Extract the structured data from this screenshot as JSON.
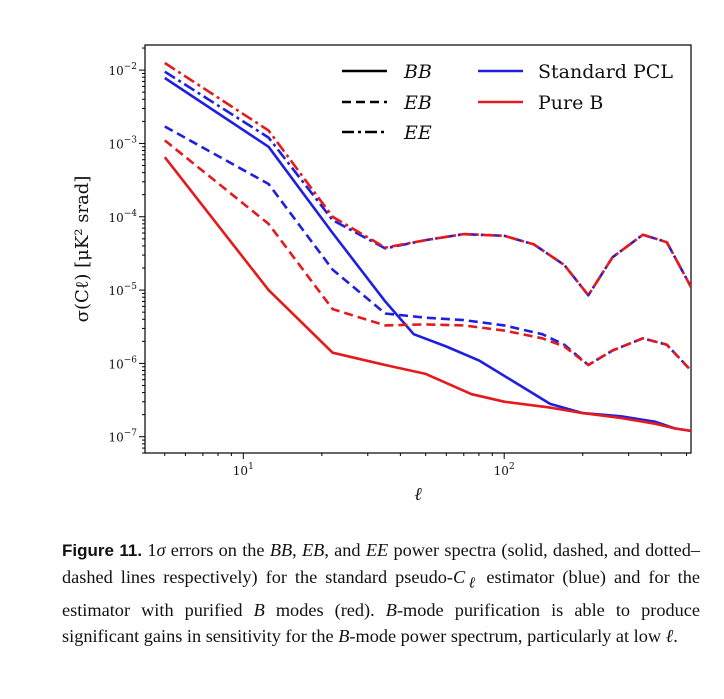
{
  "chart_data": {
    "type": "line",
    "xscale": "log",
    "yscale": "log",
    "xlim": [
      4.2,
      520
    ],
    "ylim": [
      6e-08,
      0.022
    ],
    "xlabel": "ℓ",
    "ylabel": "σ(Cℓ) [μK² srad]",
    "grid": false,
    "legend_position": "top-right",
    "x_ticks": [
      {
        "value": 10,
        "base": "10",
        "exp": "1"
      },
      {
        "value": 100,
        "base": "10",
        "exp": "2"
      }
    ],
    "y_ticks": [
      {
        "value": 0.01,
        "base": "10",
        "exp": "−2"
      },
      {
        "value": 0.001,
        "base": "10",
        "exp": "−3"
      },
      {
        "value": 0.0001,
        "base": "10",
        "exp": "−4"
      },
      {
        "value": 1e-05,
        "base": "10",
        "exp": "−5"
      },
      {
        "value": 1e-06,
        "base": "10",
        "exp": "−6"
      },
      {
        "value": 1e-07,
        "base": "10",
        "exp": "−7"
      }
    ],
    "legend": {
      "styles": [
        {
          "label": "BB",
          "dash": "solid"
        },
        {
          "label": "EB",
          "dash": "dashed"
        },
        {
          "label": "EE",
          "dash": "dashdot"
        }
      ],
      "methods": [
        {
          "label": "Standard PCL",
          "color": "#1f1fe0"
        },
        {
          "label": "Pure B",
          "color": "#e41a1c"
        }
      ]
    },
    "series": [
      {
        "spectrum": "EE",
        "method": "Standard PCL",
        "color": "#1f1fe0",
        "dash": "dashdot",
        "x": [
          5,
          12.5,
          22,
          35,
          50,
          70,
          100,
          130,
          170,
          210,
          260,
          340,
          420,
          520
        ],
        "y": [
          0.0095,
          0.0012,
          9e-05,
          3.7e-05,
          4.8e-05,
          5.8e-05,
          5.5e-05,
          4.2e-05,
          2.2e-05,
          8.5e-06,
          2.8e-05,
          5.7e-05,
          4.5e-05,
          1.1e-05
        ]
      },
      {
        "spectrum": "EE",
        "method": "Pure B",
        "color": "#e41a1c",
        "dash": "dashdot",
        "x": [
          5,
          12.5,
          22,
          35,
          50,
          70,
          100,
          130,
          170,
          210,
          260,
          340,
          420,
          520
        ],
        "y": [
          0.0125,
          0.0015,
          0.0001,
          3.8e-05,
          4.8e-05,
          5.8e-05,
          5.5e-05,
          4.2e-05,
          2.2e-05,
          8.5e-06,
          2.8e-05,
          5.7e-05,
          4.5e-05,
          1.1e-05
        ]
      },
      {
        "spectrum": "BB",
        "method": "Standard PCL",
        "color": "#1f1fe0",
        "dash": "solid",
        "x": [
          5,
          12.5,
          22,
          35,
          45,
          60,
          80,
          110,
          150,
          200,
          280,
          380,
          450,
          520
        ],
        "y": [
          0.0078,
          0.0009,
          6e-05,
          7e-06,
          2.5e-06,
          1.7e-06,
          1.1e-06,
          5.5e-07,
          2.8e-07,
          2.1e-07,
          1.9e-07,
          1.6e-07,
          1.3e-07,
          1.2e-07
        ]
      },
      {
        "spectrum": "BB",
        "method": "Pure B",
        "color": "#e41a1c",
        "dash": "solid",
        "x": [
          5,
          12.5,
          22,
          35,
          50,
          75,
          100,
          150,
          200,
          280,
          380,
          450,
          520
        ],
        "y": [
          0.00065,
          1e-05,
          1.4e-06,
          9.5e-07,
          7.2e-07,
          3.8e-07,
          3e-07,
          2.5e-07,
          2.1e-07,
          1.8e-07,
          1.5e-07,
          1.3e-07,
          1.2e-07
        ]
      },
      {
        "spectrum": "EB",
        "method": "Standard PCL",
        "color": "#1f1fe0",
        "dash": "dashed",
        "x": [
          5,
          12.5,
          22,
          35,
          50,
          70,
          100,
          140,
          170,
          210,
          260,
          340,
          420,
          520
        ],
        "y": [
          0.0017,
          0.00028,
          1.9e-05,
          4.8e-06,
          4.2e-06,
          3.9e-06,
          3.3e-06,
          2.5e-06,
          1.8e-06,
          9.5e-07,
          1.5e-06,
          2.2e-06,
          1.8e-06,
          8e-07
        ]
      },
      {
        "spectrum": "EB",
        "method": "Pure B",
        "color": "#e41a1c",
        "dash": "dashed",
        "x": [
          5,
          12.5,
          22,
          35,
          50,
          70,
          100,
          140,
          170,
          210,
          260,
          340,
          420,
          520
        ],
        "y": [
          0.0011,
          8e-05,
          5.5e-06,
          3.3e-06,
          3.4e-06,
          3.3e-06,
          2.8e-06,
          2.2e-06,
          1.7e-06,
          9.5e-07,
          1.5e-06,
          2.2e-06,
          1.8e-06,
          8e-07
        ]
      }
    ]
  },
  "caption": {
    "label": "Figure 11.",
    "p1": " 1",
    "sigma": "σ",
    "p2": " errors on the ",
    "bb": "BB",
    "p3": ", ",
    "eb": "EB",
    "p4": ", and ",
    "ee": "EE",
    "p5": " power spectra (solid, dashed, and dotted–dashed lines respectively) for the standard pseudo-",
    "c": "C",
    "ell": "ℓ",
    "p6": " estimator (blue) and for the estimator with purified ",
    "b1": "B",
    "p7": " modes (red). ",
    "b2": "B",
    "p8": "-mode purification is able to produce significant gains in sensitivity for the ",
    "b3": "B",
    "p9": "-mode power spectrum, particularly at low ",
    "ell2": "ℓ",
    "p10": "."
  }
}
